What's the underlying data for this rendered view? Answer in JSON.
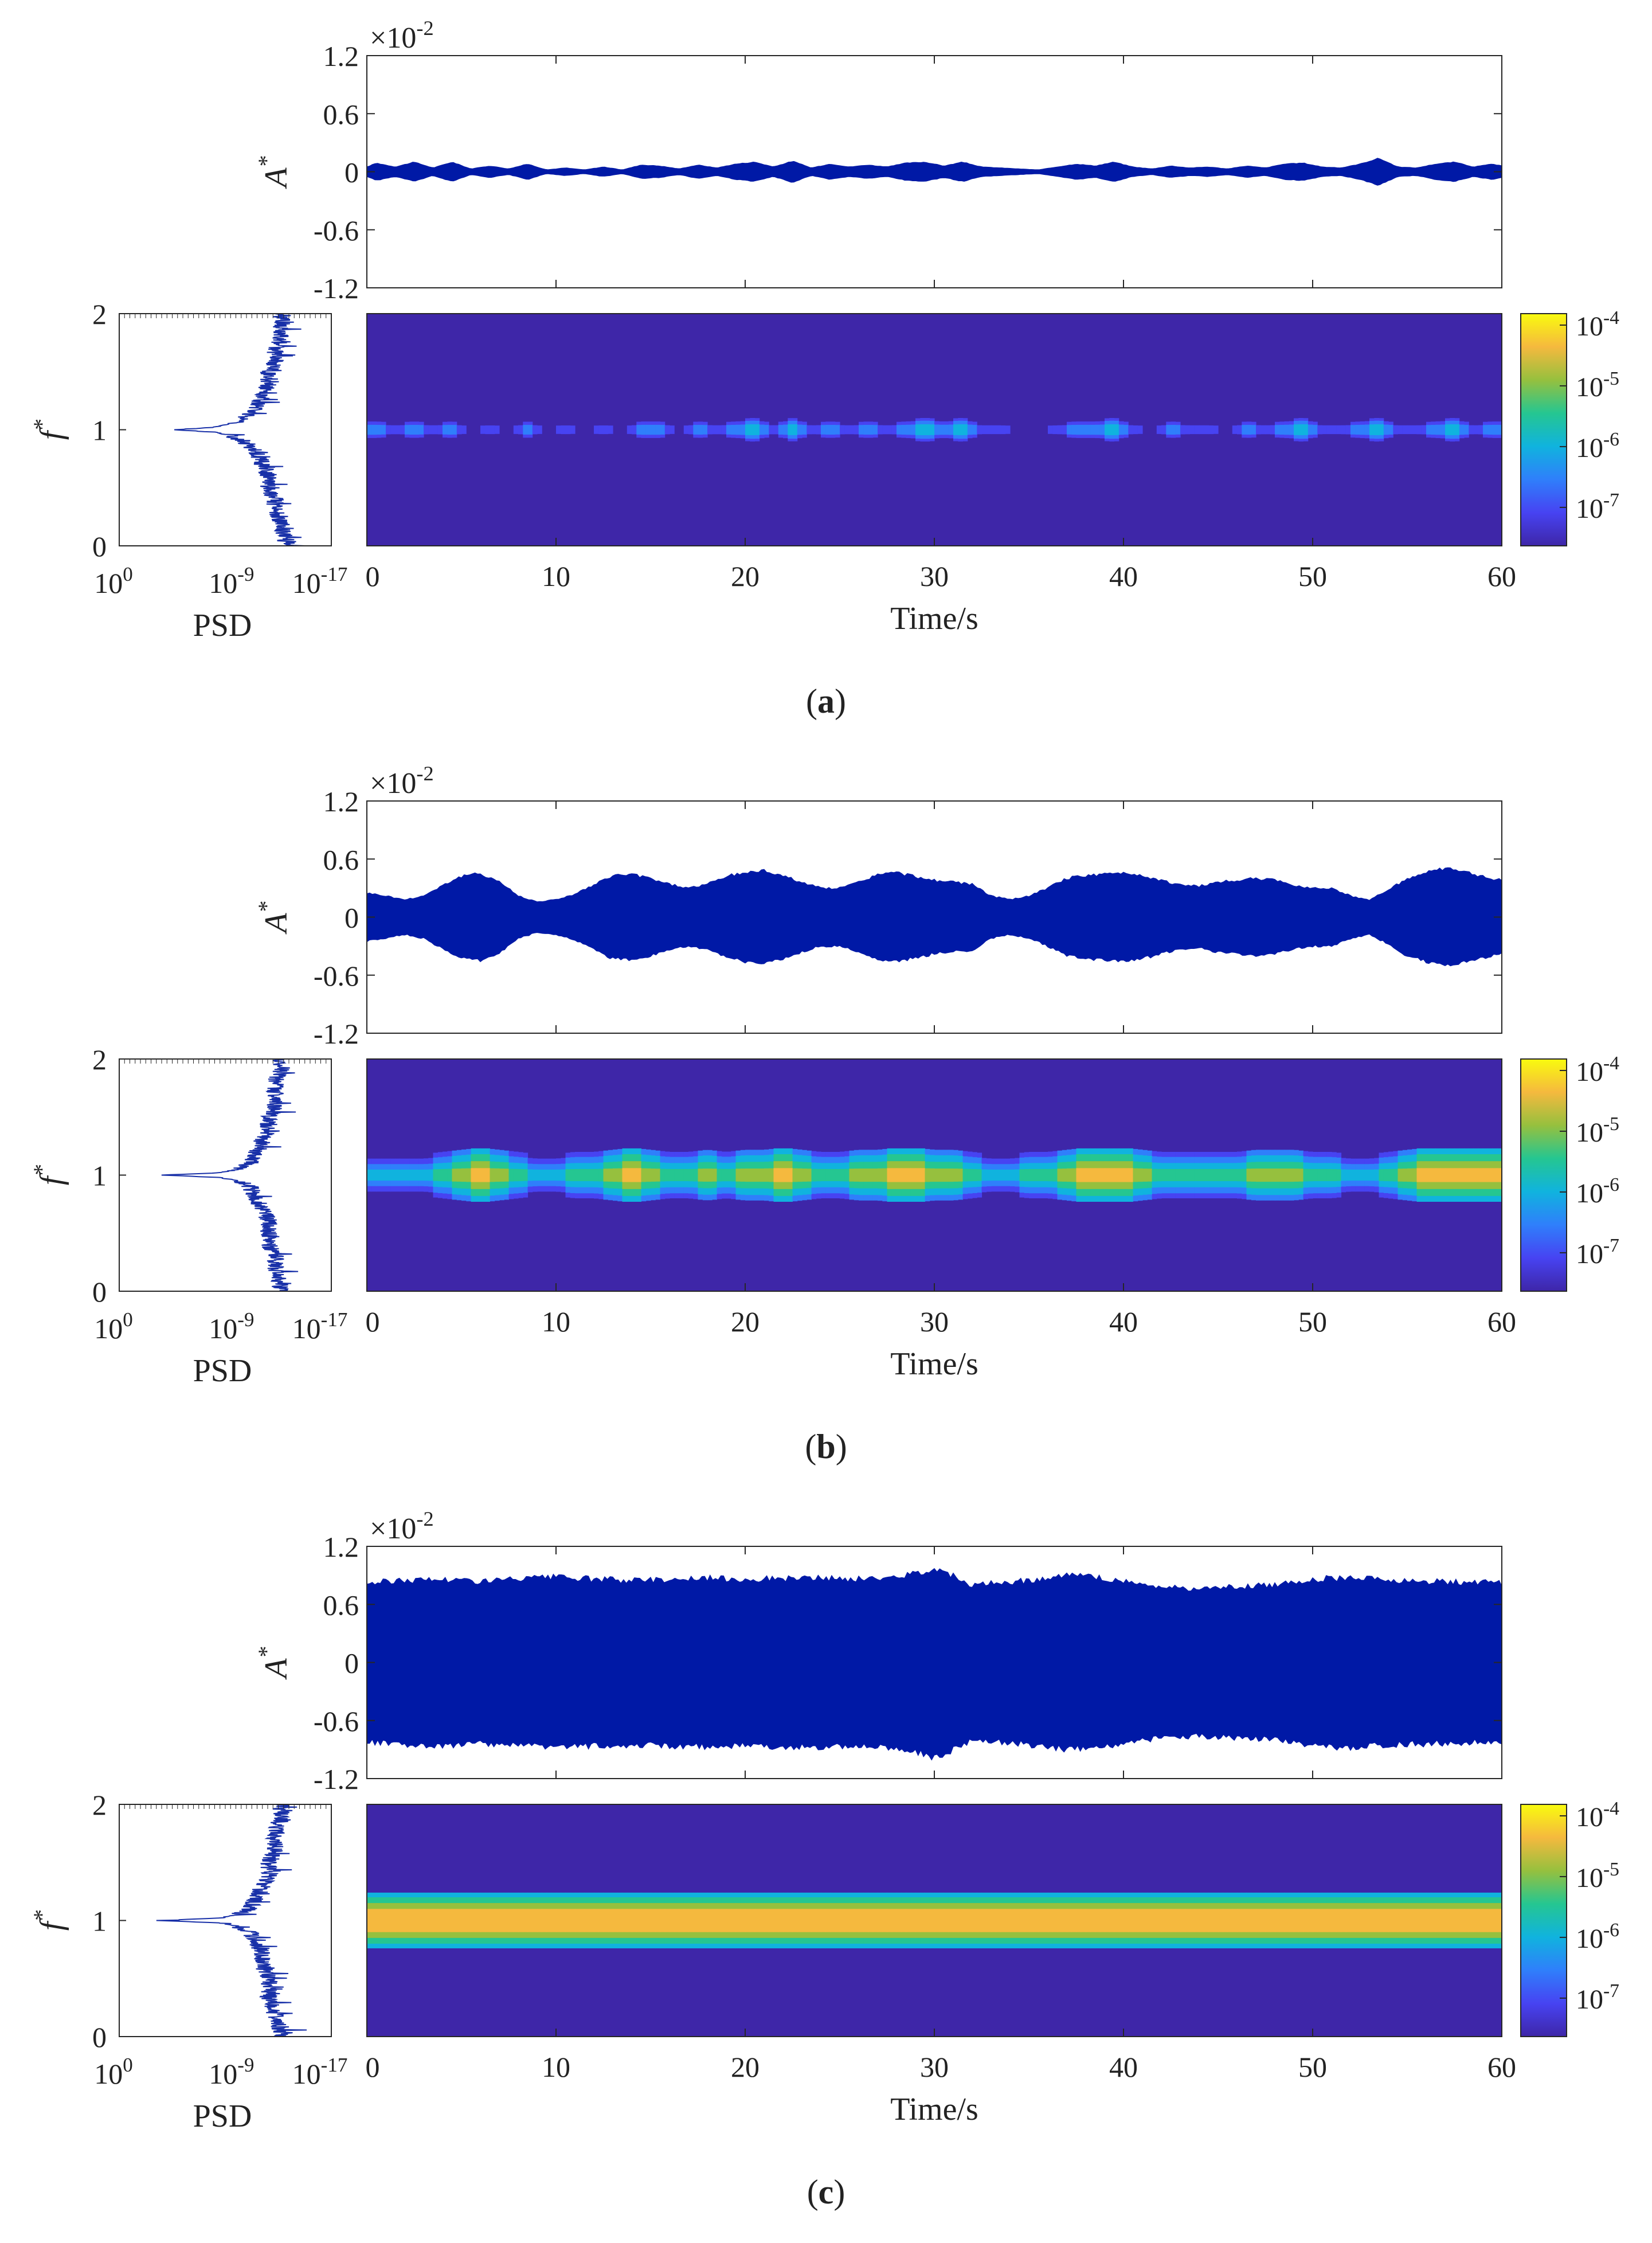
{
  "colors": {
    "signal": "#0019a6",
    "psd": "#1830a8",
    "colormap": [
      "#3e26a8",
      "#4743f2",
      "#2f7ffb",
      "#10b3de",
      "#25c691",
      "#96c03e",
      "#f5b93e",
      "#f9fb0e"
    ],
    "axis": "#262626",
    "text": "#222222"
  },
  "chart_data": [
    {
      "panel": "a",
      "caption": "(a)",
      "amp": {
        "type": "area",
        "ylabel": "A*",
        "multiplier": "×10-2",
        "yticks": [
          "1.2",
          "0.6",
          "0",
          "-0.6",
          "-1.2"
        ],
        "ylim": [
          -1.2,
          1.2
        ],
        "xlim": [
          0,
          60
        ],
        "envelope": {
          "t": [
            0,
            0.5,
            1.5,
            2.5,
            3.5,
            4.5,
            5.5,
            6.5,
            7.5,
            8.5,
            9.5,
            10.5,
            11.5,
            12.5,
            13.5,
            14.5,
            15.5,
            16.5,
            17.5,
            18.5,
            19.5,
            20.5,
            21.5,
            22.5,
            23.5,
            24.5,
            25.5,
            26.5,
            27.5,
            28.5,
            29.5,
            30.5,
            31.5,
            32.5,
            33.5,
            34.5,
            35.5,
            36.5,
            37.5,
            38.5,
            39.5,
            40.5,
            41.5,
            42.5,
            43.5,
            44.5,
            45.5,
            46.5,
            47.5,
            48.5,
            49.5,
            50.5,
            51.5,
            52.5,
            53.5,
            54.5,
            55.5,
            56.5,
            57.5,
            58.5,
            59.5,
            60
          ],
          "v": [
            0.05,
            0.09,
            0.05,
            0.1,
            0.04,
            0.1,
            0.03,
            0.06,
            0.03,
            0.08,
            0.02,
            0.04,
            0.02,
            0.05,
            0.02,
            0.07,
            0.06,
            0.03,
            0.07,
            0.04,
            0.08,
            0.1,
            0.05,
            0.11,
            0.04,
            0.08,
            0.05,
            0.07,
            0.05,
            0.09,
            0.1,
            0.06,
            0.1,
            0.05,
            0.04,
            0.03,
            0.02,
            0.05,
            0.08,
            0.06,
            0.1,
            0.05,
            0.03,
            0.06,
            0.04,
            0.05,
            0.03,
            0.06,
            0.04,
            0.08,
            0.09,
            0.05,
            0.04,
            0.08,
            0.14,
            0.05,
            0.04,
            0.08,
            0.1,
            0.05,
            0.08,
            0.06
          ]
        }
      },
      "psd": {
        "type": "line",
        "xlabel": "PSD",
        "xscale": "log-reversed",
        "xticks": [
          "10^0",
          "10^-9",
          "10^-17"
        ],
        "ylabel": "f*",
        "yticks": [
          "2",
          "1",
          "0"
        ],
        "ylim": [
          0,
          2
        ],
        "profile": {
          "f": [
            0,
            0.2,
            0.3,
            0.4,
            0.5,
            0.6,
            0.7,
            0.8,
            0.9,
            0.95,
            0.98,
            1.0,
            1.02,
            1.05,
            1.1,
            1.2,
            1.3,
            1.4,
            1.5,
            1.6,
            1.7,
            1.8,
            1.9,
            2.0
          ],
          "log10_psd": [
            -13.5,
            -13.0,
            -12.5,
            -12.5,
            -12.0,
            -12.0,
            -11.5,
            -11.0,
            -10.0,
            -9.0,
            -7.5,
            -4.5,
            -7.5,
            -9.0,
            -10.0,
            -11.0,
            -11.5,
            -12.0,
            -12.0,
            -12.5,
            -12.5,
            -13.0,
            -13.0,
            -13.0
          ]
        }
      },
      "spec": {
        "type": "heatmap",
        "xlabel": "Time/s",
        "xticks": [
          "0",
          "10",
          "20",
          "30",
          "40",
          "50",
          "60"
        ],
        "xlim": [
          0,
          60
        ],
        "f_center": 1.0,
        "band": {
          "halfwidth": [
            0.15,
            0.13,
            0.1,
            0.06
          ],
          "t": [
            0,
            0.5,
            1.5,
            2.5,
            3.5,
            4.5,
            5.5,
            6.5,
            7.5,
            8.5,
            9.5,
            10.5,
            11.5,
            12.5,
            13.5,
            14.5,
            15.5,
            16.5,
            17.5,
            18.5,
            19.5,
            20.5,
            21.5,
            22.5,
            23.5,
            24.5,
            25.5,
            26.5,
            27.5,
            28.5,
            29.5,
            30.5,
            31.5,
            32.5,
            33.5,
            34.5,
            35.5,
            36.5,
            37.5,
            38.5,
            39.5,
            40.5,
            41.5,
            42.5,
            43.5,
            44.5,
            45.5,
            46.5,
            47.5,
            48.5,
            49.5,
            50.5,
            51.5,
            52.5,
            53.5,
            54.5,
            55.5,
            56.5,
            57.5,
            58.5,
            59.5,
            60
          ],
          "level": [
            2,
            2,
            1,
            2,
            1,
            2,
            0,
            1,
            0,
            2,
            0,
            1,
            0,
            1,
            0,
            2,
            2,
            0,
            2,
            1,
            2,
            3,
            1,
            3,
            1,
            2,
            1,
            2,
            1,
            2,
            3,
            2,
            3,
            1,
            1,
            0,
            0,
            1,
            2,
            2,
            3,
            1,
            0,
            2,
            1,
            1,
            0,
            2,
            1,
            2,
            3,
            1,
            1,
            2,
            3,
            1,
            1,
            2,
            3,
            1,
            2,
            2
          ]
        }
      },
      "colorbar": {
        "scale": "log",
        "ticks": [
          "10-4",
          "10-5",
          "10-6",
          "10-7"
        ]
      }
    },
    {
      "panel": "b",
      "caption": "(b)",
      "amp": {
        "type": "area",
        "ylabel": "A*",
        "multiplier": "×10-2",
        "yticks": [
          "1.2",
          "0.6",
          "0",
          "-0.6",
          "-1.2"
        ],
        "ylim": [
          -1.2,
          1.2
        ],
        "xlim": [
          0,
          60
        ],
        "envelope": {
          "t": [
            0,
            1,
            2,
            3,
            4,
            5,
            6,
            7,
            8,
            9,
            10,
            11,
            12,
            13,
            14,
            15,
            16,
            17,
            18,
            19,
            20,
            21,
            22,
            23,
            24,
            25,
            26,
            27,
            28,
            29,
            30,
            31,
            32,
            33,
            34,
            35,
            36,
            37,
            38,
            39,
            40,
            41,
            42,
            43,
            44,
            45,
            46,
            47,
            48,
            49,
            50,
            51,
            52,
            53,
            54,
            55,
            56,
            57,
            58,
            59,
            60
          ],
          "v": [
            0.25,
            0.22,
            0.18,
            0.22,
            0.33,
            0.42,
            0.45,
            0.37,
            0.22,
            0.16,
            0.18,
            0.24,
            0.33,
            0.43,
            0.44,
            0.4,
            0.34,
            0.3,
            0.34,
            0.42,
            0.46,
            0.48,
            0.43,
            0.36,
            0.3,
            0.3,
            0.36,
            0.44,
            0.46,
            0.42,
            0.38,
            0.36,
            0.34,
            0.22,
            0.18,
            0.22,
            0.3,
            0.4,
            0.43,
            0.44,
            0.46,
            0.43,
            0.38,
            0.33,
            0.32,
            0.36,
            0.38,
            0.4,
            0.38,
            0.33,
            0.3,
            0.3,
            0.22,
            0.18,
            0.28,
            0.4,
            0.46,
            0.5,
            0.47,
            0.42,
            0.38
          ]
        }
      },
      "psd": {
        "type": "line",
        "xlabel": "PSD",
        "xscale": "log-reversed",
        "xticks": [
          "10^0",
          "10^-9",
          "10^-17"
        ],
        "ylabel": "f*",
        "yticks": [
          "2",
          "1",
          "0"
        ],
        "ylim": [
          0,
          2
        ],
        "profile": {
          "f": [
            0,
            0.2,
            0.3,
            0.4,
            0.5,
            0.6,
            0.7,
            0.8,
            0.9,
            0.95,
            0.98,
            1.0,
            1.02,
            1.05,
            1.1,
            1.2,
            1.3,
            1.4,
            1.5,
            1.6,
            1.7,
            1.8,
            1.9,
            2.0
          ],
          "log10_psd": [
            -13.0,
            -12.5,
            -12.5,
            -12.0,
            -12.0,
            -12.0,
            -11.5,
            -11.0,
            -10.5,
            -9.5,
            -8.0,
            -3.5,
            -8.0,
            -9.5,
            -10.5,
            -11.0,
            -11.5,
            -12.0,
            -12.0,
            -12.5,
            -12.5,
            -12.5,
            -13.0,
            -13.0
          ]
        }
      },
      "spec": {
        "type": "heatmap",
        "xlabel": "Time/s",
        "xticks": [
          "0",
          "10",
          "20",
          "30",
          "40",
          "50",
          "60"
        ],
        "xlim": [
          0,
          60
        ],
        "f_center": 1.0,
        "band": {
          "halfwidth": [
            0.23,
            0.18,
            0.12,
            0.06
          ],
          "t": [
            0,
            1,
            2,
            3,
            4,
            5,
            6,
            7,
            8,
            9,
            10,
            11,
            12,
            13,
            14,
            15,
            16,
            17,
            18,
            19,
            20,
            21,
            22,
            23,
            24,
            25,
            26,
            27,
            28,
            29,
            30,
            31,
            32,
            33,
            34,
            35,
            36,
            37,
            38,
            39,
            40,
            41,
            42,
            43,
            44,
            45,
            46,
            47,
            48,
            49,
            50,
            51,
            52,
            53,
            54,
            55,
            56,
            57,
            58,
            59,
            60
          ],
          "level": [
            3,
            3,
            3,
            3,
            4,
            5,
            6,
            5,
            4,
            3,
            3,
            4,
            4,
            5,
            6,
            5,
            4,
            4,
            5,
            4,
            5,
            5,
            6,
            5,
            4,
            4,
            5,
            5,
            6,
            6,
            5,
            5,
            4,
            3,
            3,
            4,
            4,
            5,
            6,
            6,
            6,
            5,
            4,
            4,
            4,
            4,
            4,
            5,
            5,
            5,
            4,
            4,
            3,
            3,
            4,
            5,
            6,
            6,
            6,
            6,
            6
          ]
        }
      },
      "colorbar": {
        "scale": "log",
        "ticks": [
          "10-4",
          "10-5",
          "10-6",
          "10-7"
        ]
      }
    },
    {
      "panel": "c",
      "caption": "(c)",
      "amp": {
        "type": "area",
        "ylabel": "A*",
        "multiplier": "×10-2",
        "yticks": [
          "1.2",
          "0.6",
          "0",
          "-0.6",
          "-1.2"
        ],
        "ylim": [
          -1.2,
          1.2
        ],
        "xlim": [
          0,
          60
        ],
        "envelope": {
          "t": [
            0,
            2,
            4,
            6,
            8,
            10,
            12,
            14,
            16,
            18,
            20,
            22,
            24,
            26,
            28,
            29,
            30,
            31,
            32,
            34,
            36,
            37,
            38,
            40,
            42,
            44,
            46,
            48,
            50,
            52,
            54,
            56,
            58,
            60
          ],
          "v": [
            0.82,
            0.85,
            0.86,
            0.84,
            0.86,
            0.88,
            0.86,
            0.85,
            0.86,
            0.87,
            0.86,
            0.87,
            0.87,
            0.86,
            0.88,
            0.92,
            0.98,
            0.9,
            0.8,
            0.83,
            0.87,
            0.9,
            0.89,
            0.84,
            0.78,
            0.76,
            0.78,
            0.8,
            0.86,
            0.88,
            0.85,
            0.84,
            0.83,
            0.82
          ]
        }
      },
      "psd": {
        "type": "line",
        "xlabel": "PSD",
        "xscale": "log-reversed",
        "xticks": [
          "10^0",
          "10^-9",
          "10^-17"
        ],
        "ylabel": "f*",
        "yticks": [
          "2",
          "1",
          "0"
        ],
        "ylim": [
          0,
          2
        ],
        "profile": {
          "f": [
            0,
            0.2,
            0.3,
            0.4,
            0.5,
            0.6,
            0.7,
            0.8,
            0.9,
            0.95,
            0.98,
            1.0,
            1.02,
            1.05,
            1.1,
            1.2,
            1.3,
            1.4,
            1.5,
            1.6,
            1.7,
            1.8,
            1.9,
            2.0
          ],
          "log10_psd": [
            -13.0,
            -12.5,
            -12.0,
            -12.0,
            -12.0,
            -11.5,
            -11.5,
            -11.0,
            -10.5,
            -9.5,
            -8.0,
            -3.0,
            -8.0,
            -9.5,
            -10.5,
            -11.0,
            -11.5,
            -12.0,
            -12.0,
            -12.5,
            -12.5,
            -12.5,
            -13.0,
            -13.0
          ]
        }
      },
      "spec": {
        "type": "heatmap",
        "xlabel": "Time/s",
        "xticks": [
          "0",
          "10",
          "20",
          "30",
          "40",
          "50",
          "60"
        ],
        "xlim": [
          0,
          60
        ],
        "f_center": 1.0,
        "band": {
          "halfwidth": [
            0.24,
            0.2,
            0.15,
            0.1
          ],
          "t": [
            0,
            60
          ],
          "level": [
            6,
            6
          ]
        }
      },
      "colorbar": {
        "scale": "log",
        "ticks": [
          "10-4",
          "10-5",
          "10-6",
          "10-7"
        ]
      }
    }
  ]
}
